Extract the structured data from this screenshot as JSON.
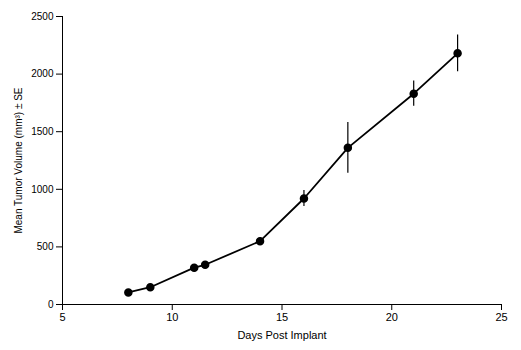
{
  "chart_data": {
    "type": "line",
    "x": [
      8,
      9,
      11,
      11.5,
      14,
      16,
      18,
      21,
      23
    ],
    "values": [
      105,
      150,
      320,
      345,
      550,
      920,
      1360,
      1830,
      2180
    ],
    "yerr": [
      8,
      18,
      22,
      25,
      28,
      70,
      220,
      110,
      160
    ],
    "xlim": [
      5,
      25
    ],
    "ylim": [
      0,
      2500
    ],
    "xticks": [
      5,
      10,
      15,
      20,
      25
    ],
    "yticks": [
      0,
      500,
      1000,
      1500,
      2000,
      2500
    ],
    "xlabel": "Days Post Implant",
    "ylabel": "Mean Tumor Volume (mm³) ± SE",
    "color": "#000000",
    "marker": "circle",
    "grid": false
  }
}
